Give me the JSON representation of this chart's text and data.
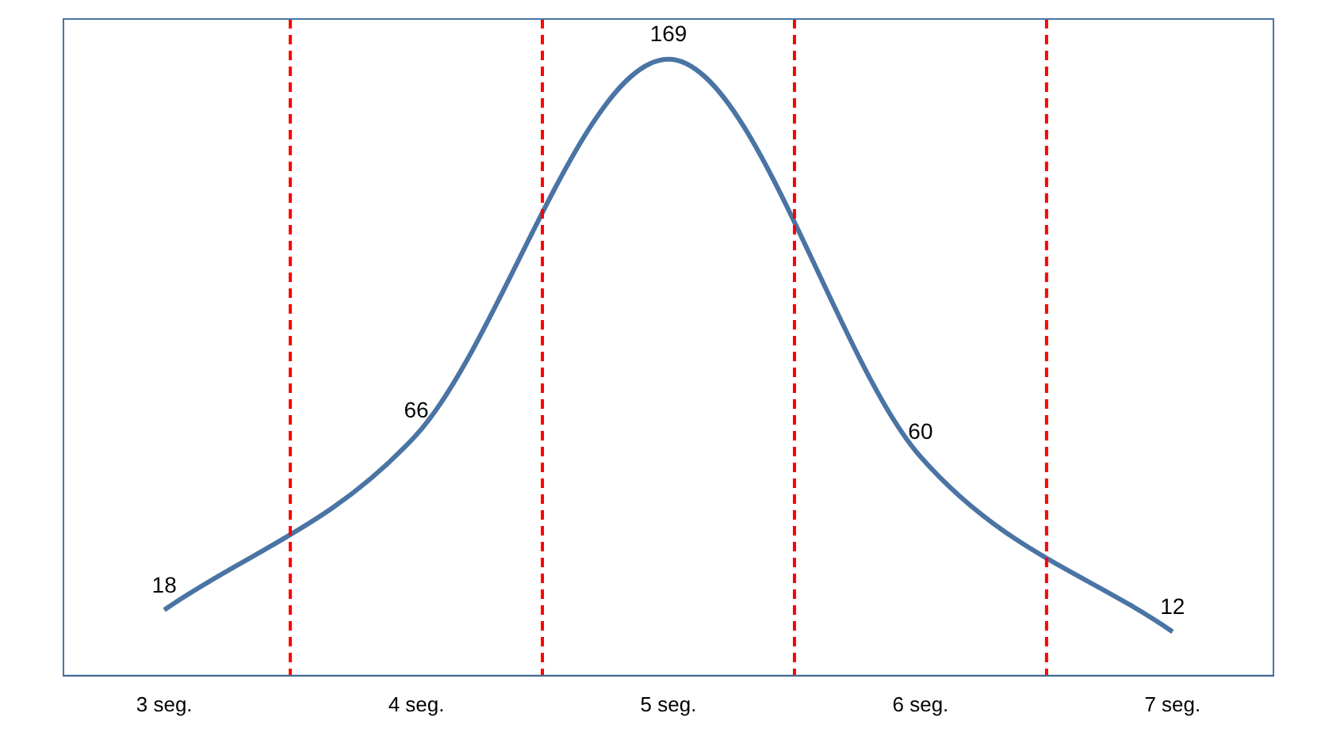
{
  "chart_data": {
    "type": "line",
    "x": [
      3,
      4,
      5,
      6,
      7
    ],
    "series": [
      {
        "color": "#4a74a4",
        "values": [
          18,
          66,
          169,
          60,
          12
        ]
      }
    ],
    "xlim": [
      2.6,
      7.4
    ],
    "xticks": [
      {
        "value": 3,
        "label": "3 seg."
      },
      {
        "value": 4,
        "label": "4 seg."
      },
      {
        "value": 5,
        "label": "5 seg."
      },
      {
        "value": 6,
        "label": "6 seg."
      },
      {
        "value": 7,
        "label": "7 seg."
      }
    ],
    "ref_lines": [
      {
        "axis": "x",
        "value": 3.5,
        "color": "#ff0000",
        "line_style": "dashed"
      },
      {
        "axis": "x",
        "value": 4.5,
        "color": "#ff0000",
        "line_style": "dashed"
      },
      {
        "axis": "x",
        "value": 5.5,
        "color": "#ff0000",
        "line_style": "dashed"
      },
      {
        "axis": "x",
        "value": 6.5,
        "color": "#ff0000",
        "line_style": "dashed"
      }
    ],
    "data_labels": true,
    "grid": false,
    "legend": false,
    "tick_labels": "x",
    "marker": "none",
    "line_style": "solid"
  }
}
